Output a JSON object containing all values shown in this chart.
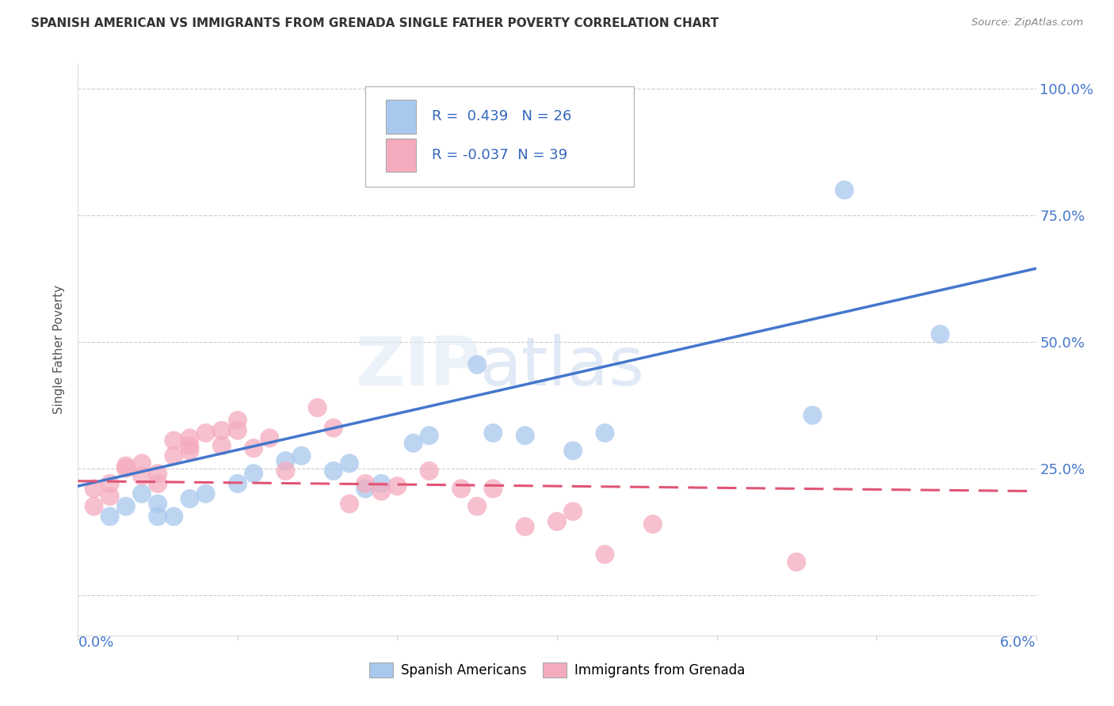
{
  "title": "SPANISH AMERICAN VS IMMIGRANTS FROM GRENADA SINGLE FATHER POVERTY CORRELATION CHART",
  "source": "Source: ZipAtlas.com",
  "ylabel": "Single Father Poverty",
  "xmin": 0.0,
  "xmax": 0.06,
  "ymin": 0.0,
  "ymax": 1.0,
  "blue_R": 0.439,
  "blue_N": 26,
  "pink_R": -0.037,
  "pink_N": 39,
  "blue_color": "#a8c8ee",
  "pink_color": "#f5abbe",
  "blue_line_color": "#4477cc",
  "pink_line_color": "#e05575",
  "legend_blue_label": "Spanish Americans",
  "legend_pink_label": "Immigrants from Grenada",
  "blue_scatter_x": [
    0.002,
    0.003,
    0.004,
    0.005,
    0.005,
    0.006,
    0.007,
    0.008,
    0.01,
    0.011,
    0.013,
    0.014,
    0.016,
    0.017,
    0.018,
    0.019,
    0.021,
    0.022,
    0.025,
    0.026,
    0.028,
    0.031,
    0.033,
    0.046,
    0.054,
    0.048
  ],
  "blue_scatter_y": [
    0.155,
    0.175,
    0.2,
    0.18,
    0.155,
    0.155,
    0.19,
    0.2,
    0.22,
    0.24,
    0.265,
    0.275,
    0.245,
    0.26,
    0.21,
    0.22,
    0.3,
    0.315,
    0.455,
    0.32,
    0.315,
    0.285,
    0.32,
    0.355,
    0.515,
    0.8
  ],
  "pink_scatter_x": [
    0.001,
    0.001,
    0.002,
    0.002,
    0.003,
    0.003,
    0.004,
    0.004,
    0.005,
    0.005,
    0.006,
    0.006,
    0.007,
    0.007,
    0.007,
    0.008,
    0.009,
    0.009,
    0.01,
    0.01,
    0.011,
    0.012,
    0.013,
    0.015,
    0.016,
    0.017,
    0.018,
    0.019,
    0.02,
    0.022,
    0.024,
    0.025,
    0.026,
    0.028,
    0.03,
    0.031,
    0.033,
    0.036,
    0.045
  ],
  "pink_scatter_y": [
    0.175,
    0.21,
    0.195,
    0.22,
    0.25,
    0.255,
    0.235,
    0.26,
    0.24,
    0.22,
    0.275,
    0.305,
    0.285,
    0.295,
    0.31,
    0.32,
    0.325,
    0.295,
    0.325,
    0.345,
    0.29,
    0.31,
    0.245,
    0.37,
    0.33,
    0.18,
    0.22,
    0.205,
    0.215,
    0.245,
    0.21,
    0.175,
    0.21,
    0.135,
    0.145,
    0.165,
    0.08,
    0.14,
    0.065
  ],
  "blue_line_x0": 0.0,
  "blue_line_y0": 0.215,
  "blue_line_x1": 0.06,
  "blue_line_y1": 0.645,
  "pink_line_x0": 0.0,
  "pink_line_y0": 0.225,
  "pink_line_x1": 0.06,
  "pink_line_y1": 0.205,
  "watermark_zip": "ZIP",
  "watermark_atlas": "atlas",
  "background_color": "#ffffff",
  "grid_color": "#cccccc",
  "yticks": [
    0.0,
    0.25,
    0.5,
    0.75,
    1.0
  ],
  "ytick_labels": [
    "",
    "25.0%",
    "50.0%",
    "75.0%",
    "100.0%"
  ]
}
